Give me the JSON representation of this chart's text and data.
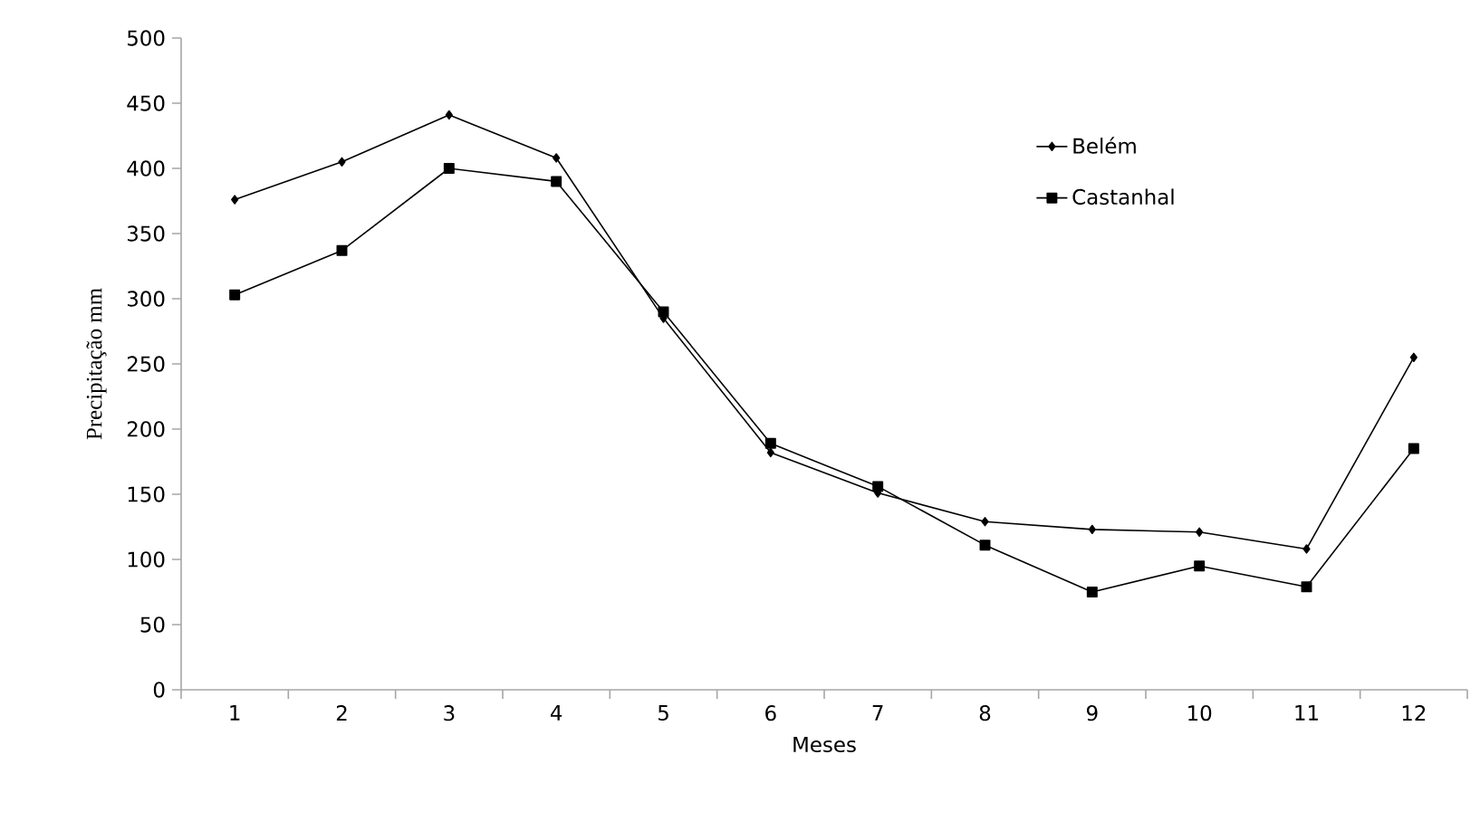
{
  "chart_data": {
    "type": "line",
    "xlabel": "Meses",
    "ylabel": "Precipitação mm",
    "categories": [
      "1",
      "2",
      "3",
      "4",
      "5",
      "6",
      "7",
      "8",
      "9",
      "10",
      "11",
      "12"
    ],
    "series": [
      {
        "name": "Belém",
        "color": "#000000",
        "marker": "diamond",
        "values": [
          376,
          405,
          441,
          408,
          285,
          182,
          151,
          129,
          123,
          121,
          108,
          255
        ]
      },
      {
        "name": "Castanhal",
        "color": "#000000",
        "marker": "square",
        "values": [
          303,
          337,
          400,
          390,
          290,
          189,
          156,
          111,
          75,
          95,
          79,
          185
        ]
      }
    ],
    "ylim": [
      0,
      500
    ],
    "yticks": [
      0,
      50,
      100,
      150,
      200,
      250,
      300,
      350,
      400,
      450,
      500
    ],
    "grid": false,
    "legend": "top right",
    "line_style": "solid"
  }
}
